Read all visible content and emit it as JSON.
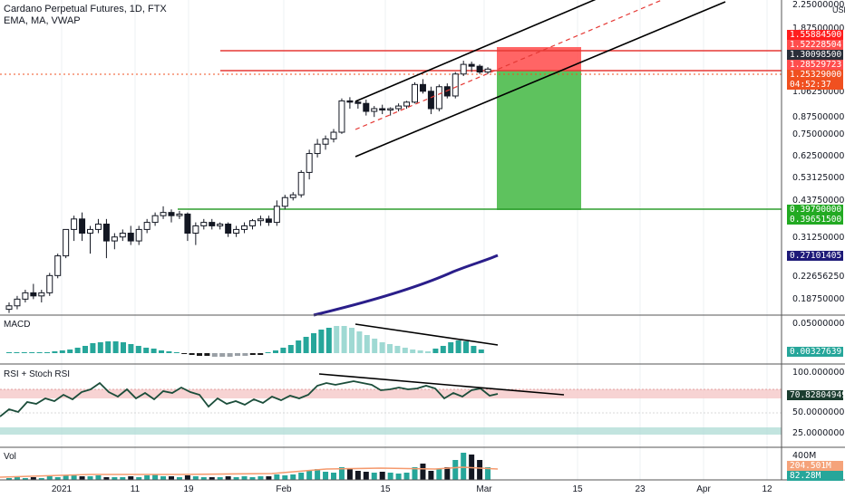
{
  "header": {
    "title": "Cardano Perpetual Futures, 1D, FTX",
    "indicators": "EMA, MA, VWAP",
    "currency": "USD"
  },
  "panes": {
    "macd_label": "MACD",
    "rsi_label": "RSI + Stoch RSI",
    "vol_label": "Vol"
  },
  "price_axis": {
    "ticks": [
      "2.25000000",
      "1.87500000",
      "1.06250000",
      "0.87500000",
      "0.75000000",
      "0.62500000",
      "0.53125000",
      "0.43750000",
      "0.31250000",
      "0.22656250",
      "0.18750000"
    ]
  },
  "price_tags": [
    {
      "text": "1.55884500",
      "color": "#ff1e1e"
    },
    {
      "text": "1.52228504",
      "color": "#ff4d4d"
    },
    {
      "text": "1.30098500",
      "color": "#2a2e39"
    },
    {
      "text": "1.28529723",
      "color": "#ff4d4d"
    },
    {
      "text": "1.25329000",
      "color": "#f05020"
    },
    {
      "text": "04:52:37",
      "color": "#f05020"
    },
    {
      "text": "0.39790000",
      "color": "#22aa22"
    },
    {
      "text": "0.39651500",
      "color": "#22aa22"
    },
    {
      "text": "0.27101405",
      "color": "#1e1a78"
    }
  ],
  "macd_axis": {
    "top": "0.05000000",
    "tag": "0.00327639",
    "tag_color": "#26a69a"
  },
  "rsi_axis": {
    "top": "100.00000000",
    "mid": "50.00000000",
    "low": "25.00000000",
    "tag": "70.82804949",
    "tag_color": "#1b3d2f"
  },
  "vol_axis": {
    "top": "400M",
    "tag1": "204.501M",
    "tag1_color": "#f5a37a",
    "tag2": "82.28M",
    "tag2_color": "#26a69a"
  },
  "x_axis": {
    "labels": [
      "2021",
      "11",
      "19",
      "Feb",
      "15",
      "Mar",
      "15",
      "23",
      "Apr",
      "12"
    ]
  },
  "chart_data": {
    "type": "candlestick",
    "title": "Cardano Perpetual Futures, 1D, FTX",
    "levels": {
      "resistance_upper": 1.558845,
      "resistance_lower": 1.300985,
      "support": 0.3979,
      "last_price": 1.25329
    },
    "candles": [
      [
        0.17,
        0.18,
        0.165,
        0.175
      ],
      [
        0.175,
        0.19,
        0.17,
        0.185
      ],
      [
        0.185,
        0.2,
        0.18,
        0.195
      ],
      [
        0.195,
        0.21,
        0.185,
        0.19
      ],
      [
        0.19,
        0.2,
        0.18,
        0.195
      ],
      [
        0.195,
        0.23,
        0.19,
        0.225
      ],
      [
        0.225,
        0.27,
        0.22,
        0.265
      ],
      [
        0.265,
        0.33,
        0.26,
        0.33
      ],
      [
        0.33,
        0.37,
        0.3,
        0.36
      ],
      [
        0.36,
        0.38,
        0.3,
        0.32
      ],
      [
        0.32,
        0.34,
        0.27,
        0.33
      ],
      [
        0.33,
        0.36,
        0.32,
        0.345
      ],
      [
        0.345,
        0.36,
        0.26,
        0.3
      ],
      [
        0.3,
        0.32,
        0.28,
        0.31
      ],
      [
        0.31,
        0.33,
        0.3,
        0.32
      ],
      [
        0.32,
        0.34,
        0.29,
        0.3
      ],
      [
        0.3,
        0.34,
        0.29,
        0.33
      ],
      [
        0.33,
        0.36,
        0.32,
        0.35
      ],
      [
        0.35,
        0.38,
        0.34,
        0.37
      ],
      [
        0.37,
        0.4,
        0.36,
        0.38
      ],
      [
        0.38,
        0.39,
        0.35,
        0.37
      ],
      [
        0.37,
        0.385,
        0.36,
        0.375
      ],
      [
        0.375,
        0.38,
        0.3,
        0.32
      ],
      [
        0.32,
        0.35,
        0.29,
        0.34
      ],
      [
        0.34,
        0.36,
        0.33,
        0.35
      ],
      [
        0.35,
        0.36,
        0.33,
        0.34
      ],
      [
        0.34,
        0.35,
        0.33,
        0.345
      ],
      [
        0.345,
        0.35,
        0.31,
        0.32
      ],
      [
        0.32,
        0.34,
        0.31,
        0.33
      ],
      [
        0.33,
        0.35,
        0.32,
        0.34
      ],
      [
        0.34,
        0.36,
        0.33,
        0.355
      ],
      [
        0.355,
        0.37,
        0.34,
        0.36
      ],
      [
        0.36,
        0.37,
        0.34,
        0.35
      ],
      [
        0.35,
        0.42,
        0.34,
        0.4
      ],
      [
        0.4,
        0.44,
        0.39,
        0.43
      ],
      [
        0.43,
        0.45,
        0.42,
        0.44
      ],
      [
        0.44,
        0.54,
        0.43,
        0.53
      ],
      [
        0.53,
        0.64,
        0.5,
        0.62
      ],
      [
        0.62,
        0.7,
        0.6,
        0.67
      ],
      [
        0.67,
        0.72,
        0.64,
        0.7
      ],
      [
        0.7,
        0.76,
        0.68,
        0.74
      ],
      [
        0.74,
        0.98,
        0.73,
        0.96
      ],
      [
        0.96,
        0.99,
        0.9,
        0.95
      ],
      [
        0.95,
        0.96,
        0.9,
        0.94
      ],
      [
        0.94,
        0.97,
        0.85,
        0.88
      ],
      [
        0.88,
        0.92,
        0.84,
        0.9
      ],
      [
        0.9,
        0.93,
        0.86,
        0.89
      ],
      [
        0.89,
        0.91,
        0.85,
        0.9
      ],
      [
        0.9,
        0.94,
        0.88,
        0.92
      ],
      [
        0.92,
        0.96,
        0.9,
        0.95
      ],
      [
        0.95,
        1.12,
        0.94,
        1.1
      ],
      [
        1.1,
        1.15,
        1.02,
        1.04
      ],
      [
        1.04,
        1.08,
        0.86,
        0.9
      ],
      [
        0.9,
        1.1,
        0.88,
        1.08
      ],
      [
        1.08,
        1.11,
        0.98,
        1.0
      ],
      [
        1.0,
        1.22,
        0.98,
        1.2
      ],
      [
        1.2,
        1.34,
        1.18,
        1.3
      ],
      [
        1.3,
        1.33,
        1.22,
        1.28
      ],
      [
        1.28,
        1.3,
        1.2,
        1.22
      ],
      [
        1.22,
        1.27,
        1.2,
        1.25
      ]
    ]
  }
}
